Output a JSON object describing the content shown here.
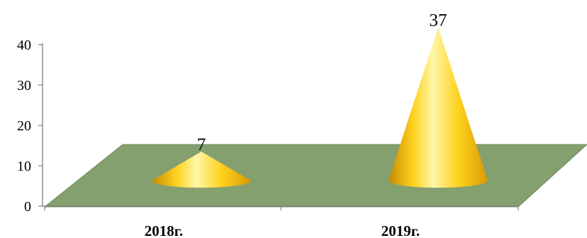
{
  "chart_data": {
    "type": "bar",
    "bar_shape": "cone",
    "projection": "3d",
    "categories": [
      "2018г.",
      "2019г."
    ],
    "values": [
      7,
      37
    ],
    "data_labels": [
      "7",
      "37"
    ],
    "ylim": [
      0,
      40
    ],
    "yticks": [
      "0",
      "10",
      "20",
      "30",
      "40"
    ],
    "grid": false,
    "legend": "none",
    "colors": {
      "floor": "#85a06f",
      "cone_light": "#fff7a8",
      "cone_mid": "#ffd21f",
      "cone_dark": "#c58a00"
    }
  }
}
